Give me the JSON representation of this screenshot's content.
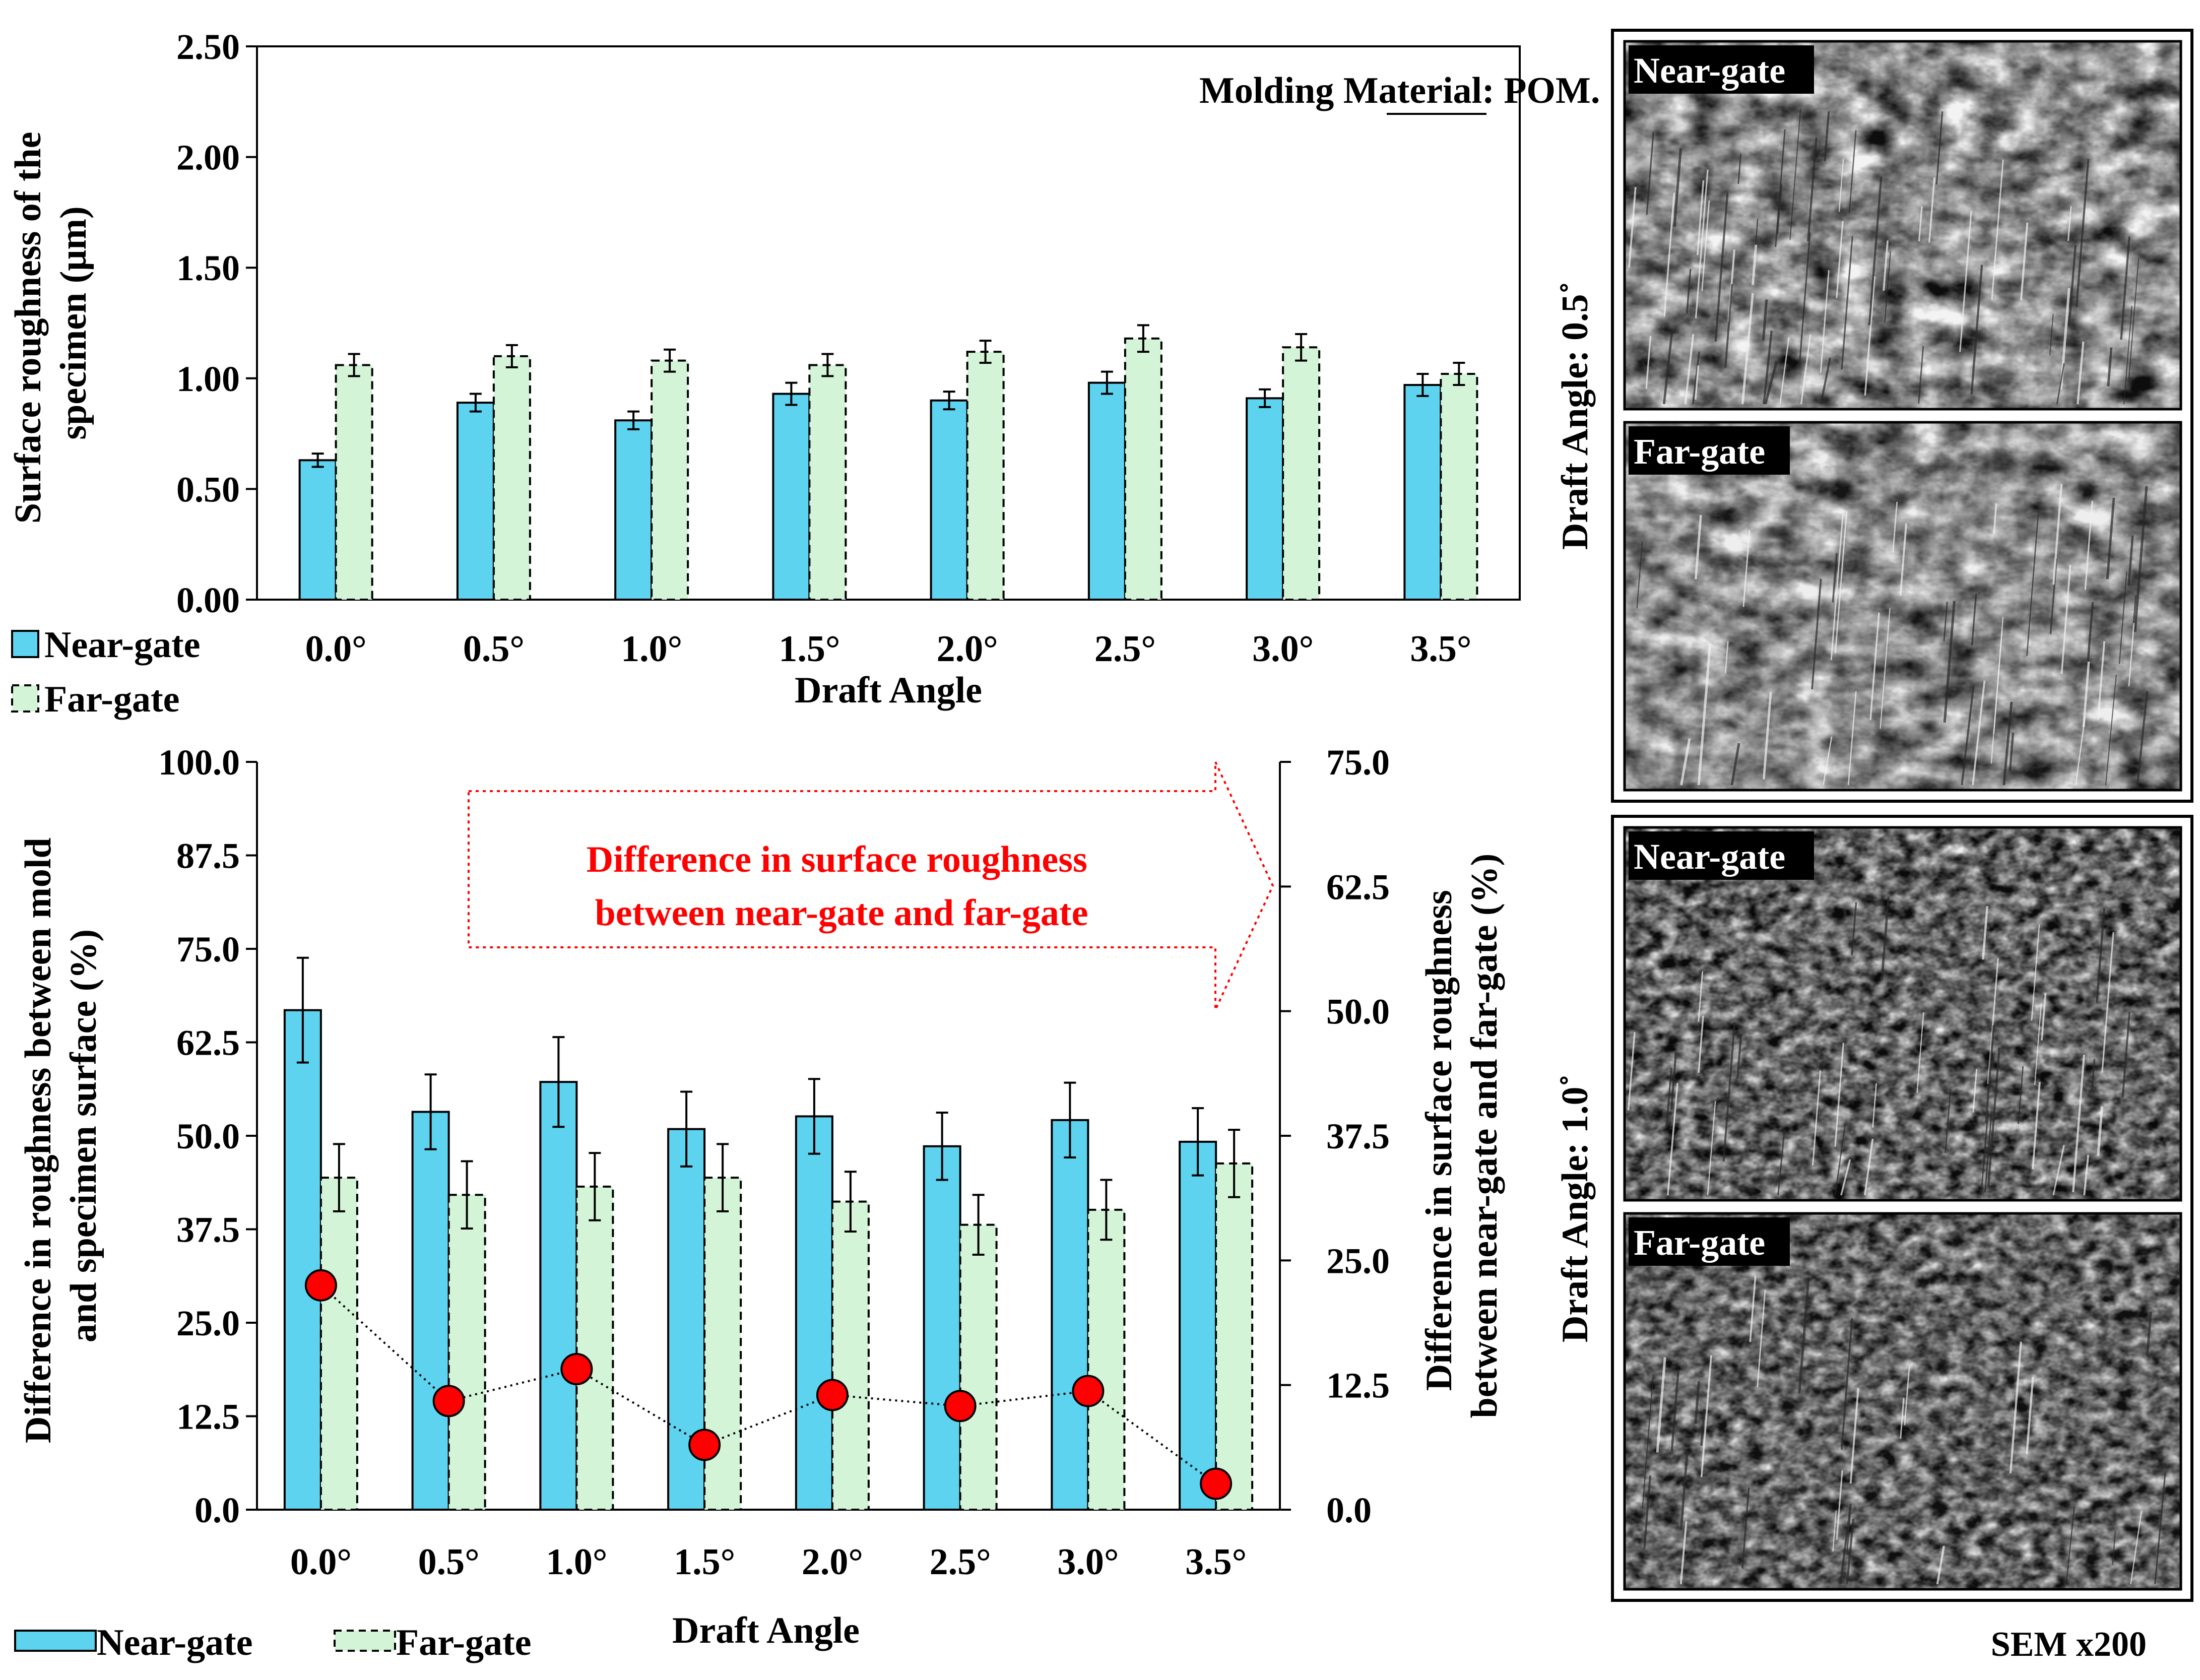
{
  "colors": {
    "near_gate": "#5dd3f0",
    "far_gate": "#d4f4d8",
    "difference": "#ff0000",
    "annotation": "#ff0000"
  },
  "chart_data": [
    {
      "type": "bar",
      "categories": [
        "0.0°",
        "0.5°",
        "1.0°",
        "1.5°",
        "2.0°",
        "2.5°",
        "3.0°",
        "3.5°"
      ],
      "series": [
        {
          "name": "Near-gate",
          "values": [
            0.63,
            0.89,
            0.81,
            0.93,
            0.9,
            0.98,
            0.91,
            0.97
          ],
          "errors": [
            0.03,
            0.04,
            0.04,
            0.05,
            0.04,
            0.05,
            0.04,
            0.05
          ]
        },
        {
          "name": "Far-gate",
          "values": [
            1.06,
            1.1,
            1.08,
            1.06,
            1.12,
            1.18,
            1.14,
            1.02
          ],
          "errors": [
            0.05,
            0.05,
            0.05,
            0.05,
            0.05,
            0.06,
            0.06,
            0.05
          ]
        }
      ],
      "xlabel": "Draft Angle",
      "ylabel_lines": [
        "Surface roughness of the",
        "specimen (μm)"
      ],
      "ylim": [
        0,
        2.5
      ],
      "yticks": [
        "0.00",
        "0.50",
        "1.00",
        "1.50",
        "2.00",
        "2.50"
      ],
      "annotation_prefix": "Molding Material: ",
      "annotation_material": "POM.",
      "legend": [
        "Near-gate",
        "Far-gate"
      ]
    },
    {
      "type": "bar+line",
      "categories": [
        "0.0°",
        "0.5°",
        "1.0°",
        "1.5°",
        "2.0°",
        "2.5°",
        "3.0°",
        "3.5°"
      ],
      "series": [
        {
          "name": "Near-gate",
          "axis": "left",
          "values": [
            66.8,
            53.2,
            57.2,
            50.9,
            52.6,
            48.6,
            52.1,
            49.2
          ],
          "errors": [
            7.0,
            5.0,
            6.0,
            5.0,
            5.0,
            4.5,
            5.0,
            4.5
          ]
        },
        {
          "name": "Far-gate",
          "axis": "left",
          "values": [
            44.4,
            42.1,
            43.2,
            44.4,
            41.2,
            38.1,
            40.1,
            46.3
          ],
          "errors": [
            4.5,
            4.5,
            4.5,
            4.5,
            4.0,
            4.0,
            4.0,
            4.5
          ]
        },
        {
          "name": "Difference in surface roughness between near-gate and far-gate",
          "axis": "right",
          "type": "line",
          "values": [
            22.5,
            10.9,
            14.1,
            6.5,
            11.5,
            10.4,
            11.9,
            2.6
          ]
        }
      ],
      "xlabel": "Draft Angle",
      "ylabel_left_lines": [
        "Difference in roughness between mold",
        "and specimen surface (%)"
      ],
      "ylabel_right_lines": [
        "Difference in surface roughness",
        "between near-gate and far-gate (%)"
      ],
      "ylim_left": [
        0,
        100
      ],
      "ylim_right": [
        0,
        75
      ],
      "yticks_left": [
        "0.0",
        "12.5",
        "25.0",
        "37.5",
        "50.0",
        "62.5",
        "75.0",
        "87.5",
        "100.0"
      ],
      "yticks_right": [
        "0.0",
        "12.5",
        "25.0",
        "37.5",
        "50.0",
        "62.5",
        "75.0"
      ],
      "annotation_lines": [
        "Difference in surface roughness",
        "between near-gate and far-gate"
      ],
      "legend": [
        "Near-gate",
        "Far-gate"
      ]
    }
  ],
  "sem_panel": {
    "groups": [
      {
        "label": "Draft Angle: 0.5˚",
        "images": [
          "Near-gate",
          "Far-gate"
        ]
      },
      {
        "label": "Draft Angle: 1.0˚",
        "images": [
          "Near-gate",
          "Far-gate"
        ]
      }
    ],
    "caption": "SEM x200"
  }
}
